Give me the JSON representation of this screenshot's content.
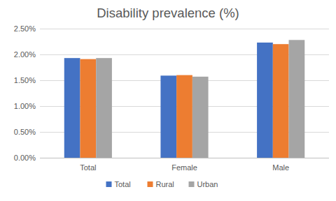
{
  "chart_data": {
    "type": "bar",
    "title": "Disability prevalence (%)",
    "categories": [
      "Total",
      "Female",
      "Male"
    ],
    "series": [
      {
        "name": "Total",
        "color": "#4472c4",
        "values": [
          1.93,
          1.59,
          2.23
        ]
      },
      {
        "name": "Rural",
        "color": "#ed7d31",
        "values": [
          1.91,
          1.6,
          2.2
        ]
      },
      {
        "name": "Urban",
        "color": "#a5a5a5",
        "values": [
          1.93,
          1.57,
          2.28
        ]
      }
    ],
    "ylim": [
      0,
      2.5
    ],
    "yticks": [
      {
        "value": 0,
        "label": "0.00%"
      },
      {
        "value": 0.5,
        "label": "0.50%"
      },
      {
        "value": 1,
        "label": "1.00%"
      },
      {
        "value": 1.5,
        "label": "1.50%"
      },
      {
        "value": 2,
        "label": "2.00%"
      },
      {
        "value": 2.5,
        "label": "2.50%"
      }
    ],
    "grid": true,
    "legend": "bottom"
  }
}
